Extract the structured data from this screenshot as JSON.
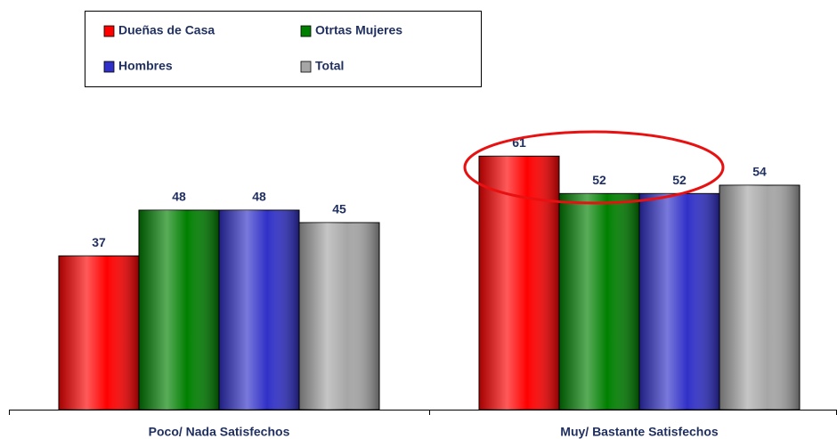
{
  "chart_data": {
    "type": "bar",
    "categories": [
      "Poco/ Nada Satisfechos",
      "Muy/ Bastante Satisfechos"
    ],
    "series": [
      {
        "name": "Dueñas de Casa",
        "color": "#ff0000",
        "values": [
          37,
          61
        ]
      },
      {
        "name": "Otrtas Mujeres",
        "color": "#008000",
        "values": [
          48,
          52
        ]
      },
      {
        "name": "Hombres",
        "color": "#3030c8",
        "values": [
          48,
          52
        ]
      },
      {
        "name": "Total",
        "color": "#a6a6a6",
        "values": [
          45,
          54
        ]
      }
    ],
    "ylim": [
      0,
      75
    ]
  }
}
